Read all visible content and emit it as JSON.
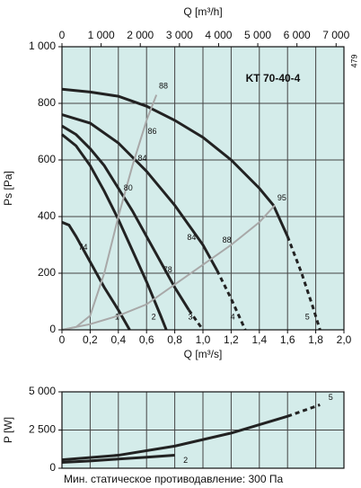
{
  "chart_data": [
    {
      "type": "line",
      "title": "KT 70-40-4",
      "side_label": "479",
      "xlabel": "Q [m³/s]",
      "x2label": "Q [m³/h]",
      "ylabel": "Ps [Pa]",
      "xlim": [
        0,
        2
      ],
      "xticks": [
        0,
        {
          "value": 0.2,
          "label": "0,2"
        },
        {
          "value": 0.4,
          "label": "0,4"
        },
        {
          "value": 0.6,
          "label": "0,6"
        },
        {
          "value": 0.8,
          "label": "0,8"
        },
        {
          "value": 1,
          "label": "1,0"
        },
        {
          "value": 1.2,
          "label": "1,2"
        },
        {
          "value": 1.4,
          "label": "1,4"
        },
        {
          "value": 1.6,
          "label": "1,6"
        },
        {
          "value": 1.8,
          "label": "1,8"
        },
        {
          "value": 2,
          "label": "2,0"
        }
      ],
      "x2lim": [
        0,
        7200
      ],
      "x2ticks": [
        0,
        {
          "value": 1000,
          "label": "1 000"
        },
        {
          "value": 2000,
          "label": "2 000"
        },
        {
          "value": 3000,
          "label": "3 000"
        },
        {
          "value": 4000,
          "label": "4 000"
        },
        {
          "value": 5000,
          "label": "5 000"
        },
        {
          "value": 6000,
          "label": "6 000"
        },
        {
          "value": 7000,
          "label": "7 000"
        }
      ],
      "ylim": [
        0,
        1000
      ],
      "yticks": [
        0,
        200,
        400,
        600,
        800,
        {
          "value": 1000,
          "label": "1 000"
        }
      ],
      "grid": true,
      "background": "#d4ecea",
      "series": [
        {
          "name": "1",
          "color": "#222222",
          "x": [
            0,
            0.05,
            0.1,
            0.2,
            0.3,
            0.4,
            0.48
          ],
          "values": [
            380,
            370,
            330,
            240,
            150,
            70,
            0
          ]
        },
        {
          "name": "2",
          "color": "#222222",
          "x": [
            0,
            0.1,
            0.2,
            0.3,
            0.4,
            0.5,
            0.6,
            0.7,
            0.74
          ],
          "values": [
            690,
            650,
            580,
            490,
            390,
            280,
            170,
            50,
            0
          ]
        },
        {
          "name": "3",
          "color": "#222222",
          "x": [
            0,
            0.1,
            0.2,
            0.3,
            0.4,
            0.5,
            0.6,
            0.7,
            0.8,
            0.9,
            1.0
          ],
          "values": [
            720,
            690,
            640,
            580,
            500,
            420,
            330,
            240,
            150,
            70,
            0
          ],
          "dashed_from": 0.9
        },
        {
          "name": "4",
          "color": "#222222",
          "x": [
            0,
            0.2,
            0.4,
            0.6,
            0.8,
            0.9,
            1.0,
            1.1,
            1.2,
            1.3
          ],
          "values": [
            760,
            730,
            660,
            560,
            440,
            370,
            300,
            210,
            110,
            0
          ],
          "dashed_from": 1.1
        },
        {
          "name": "5",
          "color": "#222222",
          "x": [
            0,
            0.2,
            0.4,
            0.6,
            0.8,
            1.0,
            1.2,
            1.4,
            1.5,
            1.6,
            1.7,
            1.78,
            1.83
          ],
          "values": [
            850,
            840,
            825,
            790,
            740,
            680,
            600,
            500,
            440,
            330,
            200,
            80,
            0
          ],
          "dashed_from": 1.6
        },
        {
          "color": "#a8a8a8",
          "x": [
            0,
            0.1,
            0.2,
            0.3,
            0.4,
            0.5,
            0.6,
            0.67
          ],
          "values": [
            0,
            10,
            50,
            200,
            400,
            580,
            740,
            830
          ]
        },
        {
          "color": "#a8a8a8",
          "x": [
            0,
            0.2,
            0.4,
            0.6,
            0.8,
            1.0,
            1.2,
            1.4,
            1.51
          ],
          "values": [
            0,
            20,
            50,
            90,
            160,
            230,
            300,
            380,
            440
          ]
        }
      ],
      "annotations": [
        {
          "text": "88",
          "x": 0.72,
          "y": 860
        },
        {
          "text": "86",
          "x": 0.64,
          "y": 700
        },
        {
          "text": "84",
          "x": 0.57,
          "y": 605
        },
        {
          "text": "80",
          "x": 0.47,
          "y": 500
        },
        {
          "text": "74",
          "x": 0.15,
          "y": 290
        },
        {
          "text": "78",
          "x": 0.75,
          "y": 210
        },
        {
          "text": "84",
          "x": 0.92,
          "y": 325
        },
        {
          "text": "88",
          "x": 1.17,
          "y": 315
        },
        {
          "text": "95",
          "x": 1.56,
          "y": 465
        }
      ]
    },
    {
      "type": "line",
      "ylabel": "P [W]",
      "note": "Мин. статическое противодавление: 300 Па",
      "xlim": [
        0,
        2
      ],
      "xticks": [
        0,
        0.2,
        0.4,
        0.6,
        0.8,
        1,
        1.2,
        1.4,
        1.6,
        1.8,
        2
      ],
      "ylim": [
        0,
        5000
      ],
      "yticks": [
        0,
        {
          "value": 2500,
          "label": "2 500"
        },
        {
          "value": 5000,
          "label": "5 000"
        }
      ],
      "grid": true,
      "background": "#d4ecea",
      "series": [
        {
          "name": "2",
          "color": "#222222",
          "x": [
            0,
            0.2,
            0.4,
            0.6,
            0.8
          ],
          "values": [
            380,
            480,
            600,
            720,
            850
          ]
        },
        {
          "name": "5",
          "color": "#222222",
          "x": [
            0,
            0.4,
            0.8,
            1.2,
            1.6,
            1.83
          ],
          "values": [
            550,
            850,
            1450,
            2300,
            3400,
            4150
          ],
          "dashed_from": 1.6
        }
      ]
    }
  ]
}
